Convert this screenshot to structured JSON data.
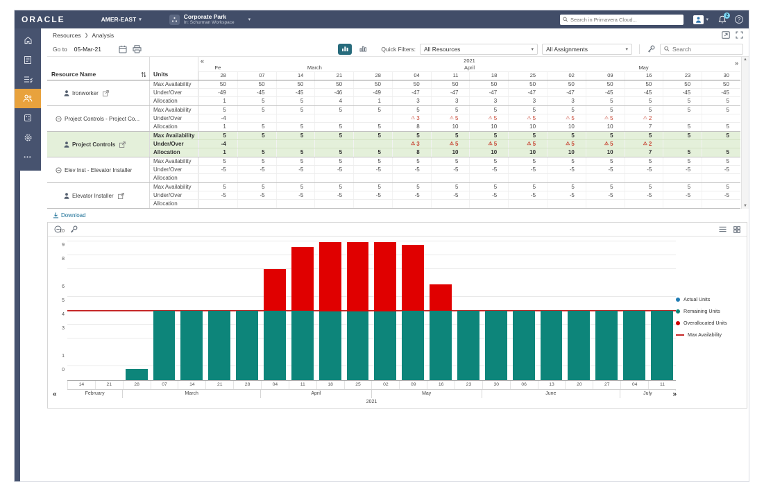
{
  "topbar": {
    "logo": "ORACLE",
    "org": "AMER-EAST",
    "workspace_name": "Corporate Park",
    "workspace_sub": "In: Schurman Workspace",
    "search_placeholder": "Search in Primavera Cloud...",
    "notification_count": "2",
    "help_label": "?"
  },
  "breadcrumb": {
    "items": [
      "Resources",
      "Analysis"
    ]
  },
  "toolbar": {
    "goto_label": "Go to",
    "goto_date": "05-Mar-21",
    "quick_filters_label": "Quick Filters:",
    "resources_filter": "All Resources",
    "assignments_filter": "All Assignments",
    "search_placeholder": "Search"
  },
  "nav": {
    "prev": "«",
    "next": "»"
  },
  "table": {
    "resource_col": "Resource Name",
    "units_col": "Units",
    "year": "2021",
    "unit_rows": [
      "Max Availability",
      "Under/Over",
      "Allocation"
    ],
    "month_groups": [
      {
        "label": "Fe",
        "days": [
          "28"
        ]
      },
      {
        "label": "March",
        "days": [
          "07",
          "14",
          "21",
          "28"
        ]
      },
      {
        "label": "April",
        "days": [
          "04",
          "11",
          "18",
          "25"
        ]
      },
      {
        "label": "May",
        "days": [
          "02",
          "09",
          "16",
          "23",
          "30"
        ]
      }
    ],
    "resources": [
      {
        "name": "Ironworker",
        "icon": "person",
        "popout": true,
        "indent": "leaf",
        "highlight": false,
        "max": [
          "50",
          "50",
          "50",
          "50",
          "50",
          "50",
          "50",
          "50",
          "50",
          "50",
          "50",
          "50",
          "50",
          "50"
        ],
        "under_over": [
          "-49",
          "-45",
          "-45",
          "-46",
          "-49",
          "-47",
          "-47",
          "-47",
          "-47",
          "-47",
          "-45",
          "-45",
          "-45",
          "-45"
        ],
        "allocation": [
          "1",
          "5",
          "5",
          "4",
          "1",
          "3",
          "3",
          "3",
          "3",
          "3",
          "5",
          "5",
          "5",
          "5"
        ]
      },
      {
        "name": "Project Controls - Project Co...",
        "icon": "collapse",
        "popout": false,
        "indent": "group",
        "highlight": false,
        "max": [
          "5",
          "5",
          "5",
          "5",
          "5",
          "5",
          "5",
          "5",
          "5",
          "5",
          "5",
          "5",
          "5",
          "5"
        ],
        "under_over": [
          "-4",
          "",
          "",
          "",
          "",
          "!3",
          "!5",
          "!5",
          "!5",
          "!5",
          "!5",
          "!2",
          "",
          ""
        ],
        "allocation": [
          "1",
          "5",
          "5",
          "5",
          "5",
          "8",
          "10",
          "10",
          "10",
          "10",
          "10",
          "7",
          "5",
          "5"
        ]
      },
      {
        "name": "Project Controls",
        "icon": "person",
        "popout": true,
        "indent": "leaf",
        "highlight": true,
        "max": [
          "5",
          "5",
          "5",
          "5",
          "5",
          "5",
          "5",
          "5",
          "5",
          "5",
          "5",
          "5",
          "5",
          "5"
        ],
        "under_over": [
          "-4",
          "",
          "",
          "",
          "",
          "!3",
          "!5",
          "!5",
          "!5",
          "!5",
          "!5",
          "!2",
          "",
          ""
        ],
        "allocation": [
          "1",
          "5",
          "5",
          "5",
          "5",
          "8",
          "10",
          "10",
          "10",
          "10",
          "10",
          "7",
          "5",
          "5"
        ]
      },
      {
        "name": "Elev Inst - Elevator Installer",
        "icon": "collapse",
        "popout": false,
        "indent": "group",
        "highlight": false,
        "max": [
          "5",
          "5",
          "5",
          "5",
          "5",
          "5",
          "5",
          "5",
          "5",
          "5",
          "5",
          "5",
          "5",
          "5"
        ],
        "under_over": [
          "-5",
          "-5",
          "-5",
          "-5",
          "-5",
          "-5",
          "-5",
          "-5",
          "-5",
          "-5",
          "-5",
          "-5",
          "-5",
          "-5"
        ],
        "allocation": [
          "",
          "",
          "",
          "",
          "",
          "",
          "",
          "",
          "",
          "",
          "",
          "",
          "",
          ""
        ]
      },
      {
        "name": "Elevator Installer",
        "icon": "person",
        "popout": true,
        "indent": "leaf",
        "highlight": false,
        "max": [
          "5",
          "5",
          "5",
          "5",
          "5",
          "5",
          "5",
          "5",
          "5",
          "5",
          "5",
          "5",
          "5",
          "5"
        ],
        "under_over": [
          "-5",
          "-5",
          "-5",
          "-5",
          "-5",
          "-5",
          "-5",
          "-5",
          "-5",
          "-5",
          "-5",
          "-5",
          "-5",
          "-5"
        ],
        "allocation": [
          "",
          "",
          "",
          "",
          "",
          "",
          "",
          "",
          "",
          "",
          "",
          "",
          "",
          ""
        ]
      }
    ]
  },
  "download": {
    "label": "Download"
  },
  "chart_data": {
    "type": "bar",
    "title": "",
    "ylim": [
      0,
      10
    ],
    "yticks": [
      0,
      1,
      3,
      4,
      5,
      6,
      8,
      9,
      10
    ],
    "max_availability": 5,
    "year": "2021",
    "weeks": [
      {
        "day": "14",
        "remaining": 0,
        "over": 0
      },
      {
        "day": "21",
        "remaining": 0,
        "over": 0
      },
      {
        "day": "28",
        "remaining": 0.8,
        "over": 0
      },
      {
        "day": "07",
        "remaining": 5,
        "over": 0
      },
      {
        "day": "14",
        "remaining": 5,
        "over": 0
      },
      {
        "day": "21",
        "remaining": 5,
        "over": 0
      },
      {
        "day": "28",
        "remaining": 5,
        "over": 0
      },
      {
        "day": "04",
        "remaining": 5,
        "over": 3
      },
      {
        "day": "11",
        "remaining": 5,
        "over": 4.6
      },
      {
        "day": "18",
        "remaining": 5,
        "over": 5
      },
      {
        "day": "25",
        "remaining": 5,
        "over": 5
      },
      {
        "day": "02",
        "remaining": 5,
        "over": 5
      },
      {
        "day": "09",
        "remaining": 5,
        "over": 4.75
      },
      {
        "day": "16",
        "remaining": 5,
        "over": 1.9
      },
      {
        "day": "23",
        "remaining": 5,
        "over": 0
      },
      {
        "day": "30",
        "remaining": 5,
        "over": 0
      },
      {
        "day": "06",
        "remaining": 5,
        "over": 0
      },
      {
        "day": "13",
        "remaining": 5,
        "over": 0
      },
      {
        "day": "20",
        "remaining": 5,
        "over": 0
      },
      {
        "day": "27",
        "remaining": 5,
        "over": 0
      },
      {
        "day": "04",
        "remaining": 5,
        "over": 0
      },
      {
        "day": "11",
        "remaining": 5,
        "over": 0
      }
    ],
    "months": [
      {
        "label": "February",
        "span": 2
      },
      {
        "label": "March",
        "span": 5
      },
      {
        "label": "April",
        "span": 4
      },
      {
        "label": "May",
        "span": 4
      },
      {
        "label": "June",
        "span": 5
      },
      {
        "label": "July",
        "span": 2
      }
    ],
    "legend": [
      {
        "label": "Actual Units",
        "color": "#1f7cb4",
        "type": "dot"
      },
      {
        "label": "Remaining Units",
        "color": "#0d857a",
        "type": "dot"
      },
      {
        "label": "Overallocated Units",
        "color": "#d00000",
        "type": "dot"
      },
      {
        "label": "Max Availability",
        "color": "#c62828",
        "type": "line"
      }
    ]
  },
  "icons": {
    "sidebar": [
      "home-icon",
      "portfolio-icon",
      "tasks-icon",
      "resources-icon",
      "apps-icon",
      "settings-icon",
      "more-icon"
    ],
    "toolbar": [
      "calendar-icon",
      "printer-icon",
      "usage-histogram-icon",
      "usage-outline-icon",
      "key-icon",
      "search-icon"
    ],
    "chart_toolbar": [
      "zoom-out-icon",
      "key-icon",
      "list-view-icon",
      "grid-view-icon"
    ]
  },
  "colors": {
    "navy": "#414d68",
    "sidebar": "#47536f",
    "amber": "#e8a23d",
    "teal": "#0d857a",
    "red": "#e00000",
    "linered": "#c62828",
    "greenbg": "#e4f0da",
    "warn": "#c74634",
    "link": "#1b6f96",
    "tealbtn": "#276b7c"
  }
}
